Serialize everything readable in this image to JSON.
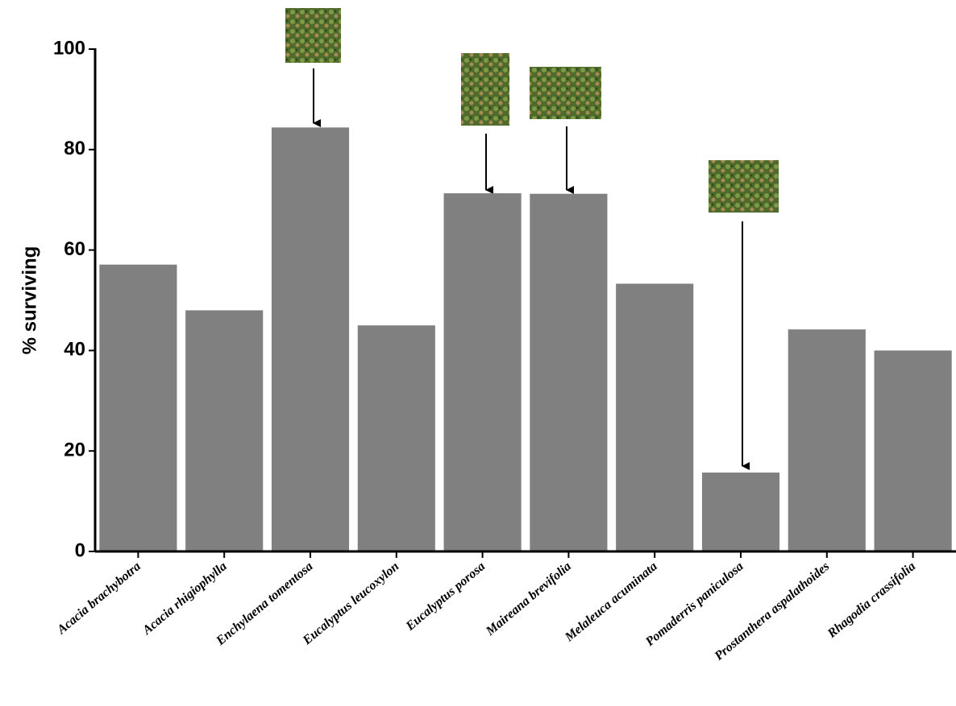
{
  "chart_data": {
    "type": "bar",
    "y_label": "% surviving",
    "categories": [
      "Acacia brachybotra",
      "Acacia rhigiophylla",
      "Enchylaena tomentosa",
      "Eucalyptus leucoxylon",
      "Eucalyptus porosa",
      "Maireana brevifolia",
      "Melaleuca acuminata",
      "Pomaderris paniculosa",
      "Prostanthera aspalathoides",
      "Rhagodia crassifolia"
    ],
    "values": [
      57.1,
      48,
      84.4,
      45,
      71.3,
      71.2,
      53.3,
      15.7,
      44.2,
      40
    ],
    "color": "#808080",
    "ylim": [
      0,
      100
    ],
    "yticks": [
      0,
      20,
      40,
      60,
      80,
      100
    ]
  }
}
